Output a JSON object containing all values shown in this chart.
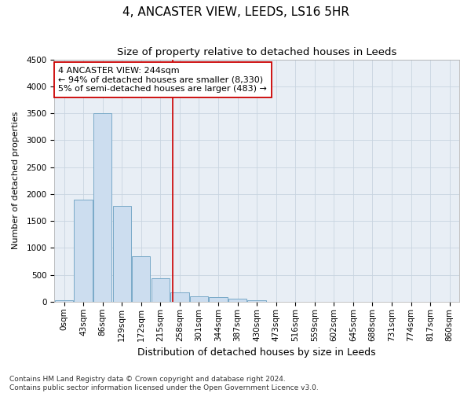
{
  "title": "4, ANCASTER VIEW, LEEDS, LS16 5HR",
  "subtitle": "Size of property relative to detached houses in Leeds",
  "xlabel": "Distribution of detached houses by size in Leeds",
  "ylabel": "Number of detached properties",
  "bar_color": "#ccddef",
  "bar_edge_color": "#7aaac8",
  "categories": [
    "0sqm",
    "43sqm",
    "86sqm",
    "129sqm",
    "172sqm",
    "215sqm",
    "258sqm",
    "301sqm",
    "344sqm",
    "387sqm",
    "430sqm",
    "473sqm",
    "516sqm",
    "559sqm",
    "602sqm",
    "645sqm",
    "688sqm",
    "731sqm",
    "774sqm",
    "817sqm",
    "860sqm"
  ],
  "values": [
    30,
    1900,
    3500,
    1780,
    850,
    440,
    170,
    105,
    85,
    55,
    30,
    0,
    0,
    0,
    0,
    0,
    0,
    0,
    0,
    0,
    0
  ],
  "vline_x": 5.65,
  "vline_color": "#cc0000",
  "annotation_text": "4 ANCASTER VIEW: 244sqm\n← 94% of detached houses are smaller (8,330)\n5% of semi-detached houses are larger (483) →",
  "annotation_box_color": "white",
  "annotation_box_edge": "#cc0000",
  "ylim": [
    0,
    4500
  ],
  "yticks": [
    0,
    500,
    1000,
    1500,
    2000,
    2500,
    3000,
    3500,
    4000,
    4500
  ],
  "footnote": "Contains HM Land Registry data © Crown copyright and database right 2024.\nContains public sector information licensed under the Open Government Licence v3.0.",
  "title_fontsize": 11,
  "subtitle_fontsize": 9.5,
  "xlabel_fontsize": 9,
  "ylabel_fontsize": 8,
  "tick_fontsize": 7.5,
  "annot_fontsize": 8,
  "footnote_fontsize": 6.5,
  "bg_color": "#e8eef5"
}
